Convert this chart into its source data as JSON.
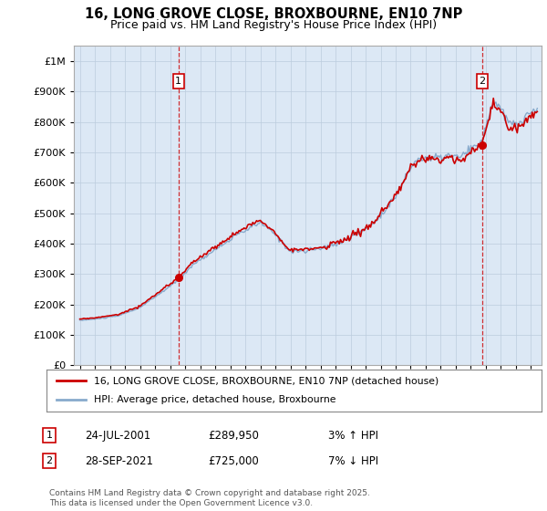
{
  "title": "16, LONG GROVE CLOSE, BROXBOURNE, EN10 7NP",
  "subtitle": "Price paid vs. HM Land Registry's House Price Index (HPI)",
  "sale1_date": "24-JUL-2001",
  "sale1_price": 289950,
  "sale1_year": 2001.56,
  "sale2_date": "28-SEP-2021",
  "sale2_price": 725000,
  "sale2_year": 2021.75,
  "legend_line1": "16, LONG GROVE CLOSE, BROXBOURNE, EN10 7NP (detached house)",
  "legend_line2": "HPI: Average price, detached house, Broxbourne",
  "ann1_num": "1",
  "ann1_date": "24-JUL-2001",
  "ann1_price": "£289,950",
  "ann1_pct": "3% ↑ HPI",
  "ann2_num": "2",
  "ann2_date": "28-SEP-2021",
  "ann2_price": "£725,000",
  "ann2_pct": "7% ↓ HPI",
  "footer": "Contains HM Land Registry data © Crown copyright and database right 2025.\nThis data is licensed under the Open Government Licence v3.0.",
  "line_color_property": "#cc0000",
  "line_color_hpi": "#88aacc",
  "vline_color": "#cc0000",
  "chart_bg": "#dce8f5",
  "background_color": "#ffffff",
  "ylim_min": 0,
  "ylim_max": 1050000,
  "yticks": [
    0,
    100000,
    200000,
    300000,
    400000,
    500000,
    600000,
    700000,
    800000,
    900000,
    1000000
  ]
}
